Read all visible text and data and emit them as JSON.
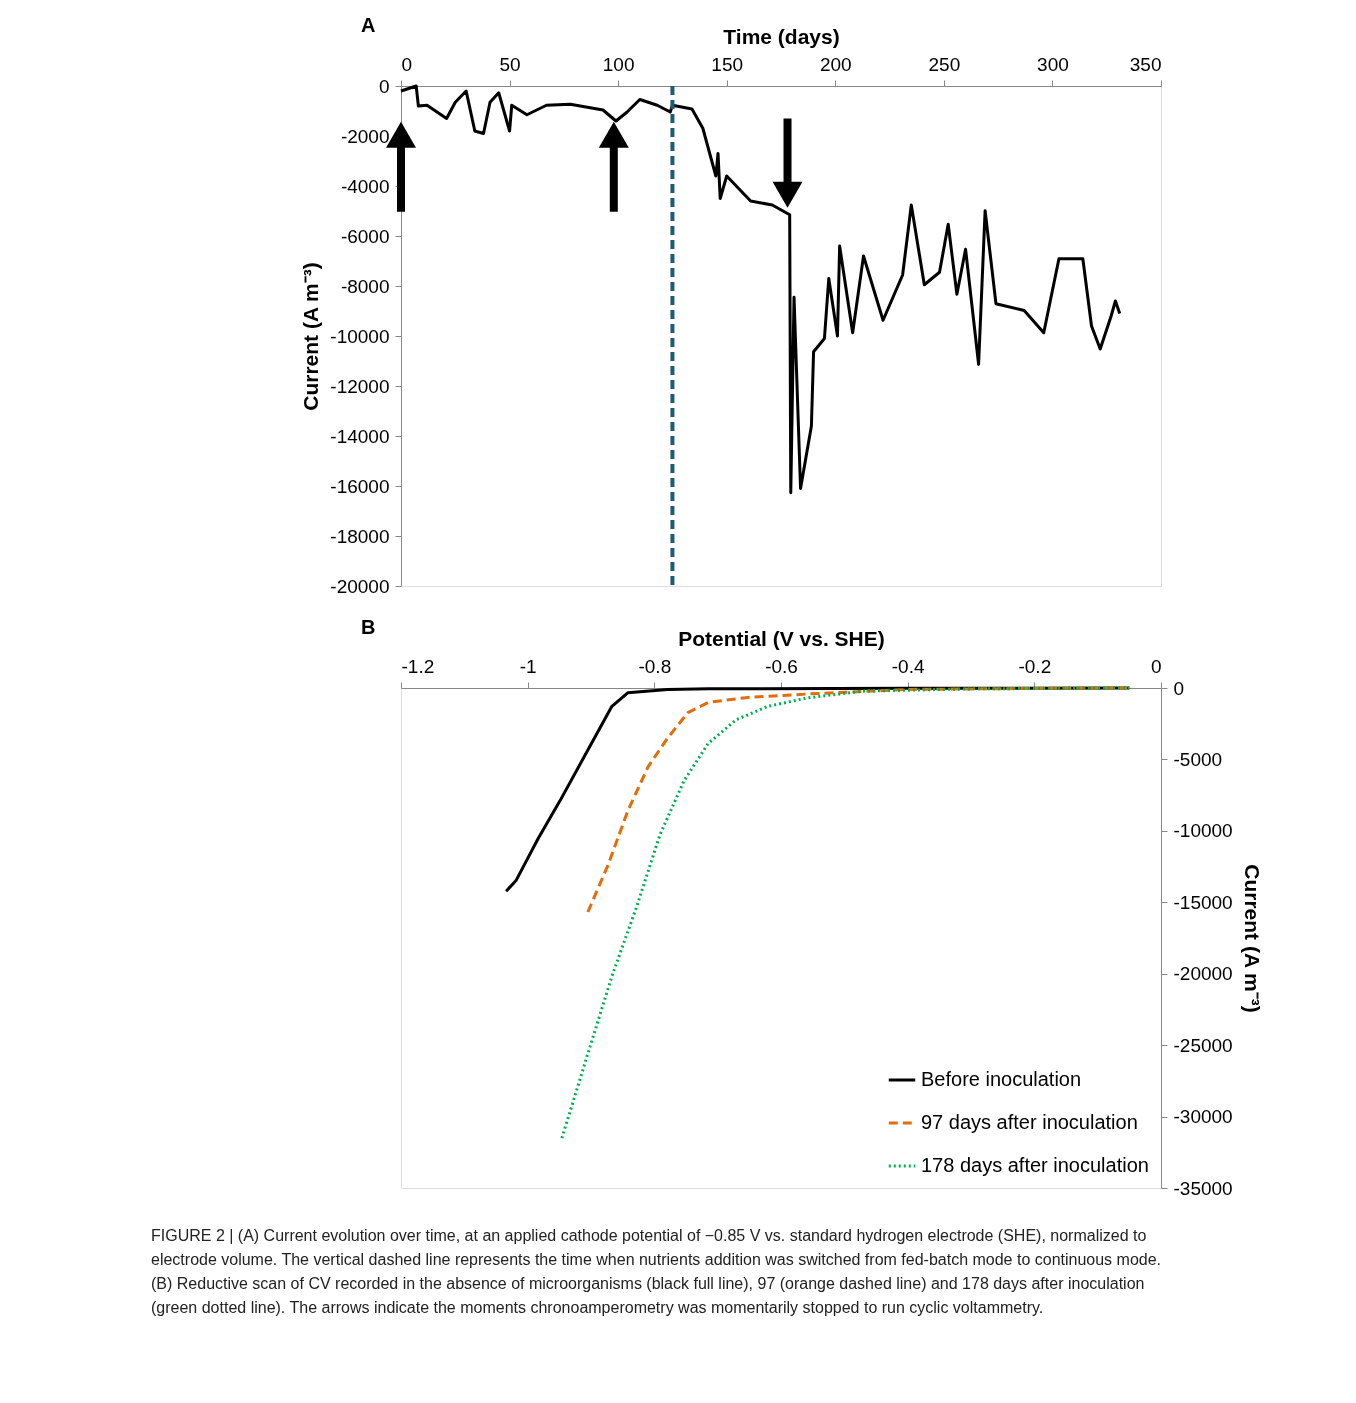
{
  "chart_data": [
    {
      "type": "line",
      "title": "A",
      "xlabel": "Time (days)",
      "ylabel": "Current (A m⁻³)",
      "xlim": [
        0,
        350
      ],
      "xticks": [
        0,
        50,
        100,
        150,
        200,
        250,
        300,
        350
      ],
      "ylim": [
        -20000,
        0
      ],
      "yticks": [
        -20000,
        -18000,
        -16000,
        -14000,
        -12000,
        -10000,
        -8000,
        -6000,
        -4000,
        -2000,
        0
      ],
      "grid": false,
      "legend": false,
      "series": [
        {
          "color": "#000000",
          "x": [
            0,
            7,
            8,
            12,
            21,
            25,
            30,
            34,
            38,
            41,
            45,
            50,
            51,
            58,
            67,
            78,
            93,
            99,
            104,
            110,
            118,
            124,
            125,
            134,
            139,
            145,
            146,
            147,
            150,
            161,
            171,
            179,
            179.5,
            181,
            184,
            189,
            190,
            195,
            197,
            201,
            202,
            208,
            213,
            222,
            231,
            235,
            241,
            248,
            252,
            256,
            260,
            266,
            269,
            274,
            287,
            296,
            303,
            314,
            318,
            322,
            327,
            329,
            331
          ],
          "values": [
            -200,
            0,
            -800,
            -770,
            -1300,
            -650,
            -200,
            -1800,
            -1900,
            -650,
            -270,
            -1800,
            -770,
            -1150,
            -770,
            -730,
            -960,
            -1400,
            -1050,
            -540,
            -770,
            -1040,
            -770,
            -920,
            -1690,
            -3600,
            -2700,
            -4500,
            -3600,
            -4600,
            -4760,
            -5150,
            -16270,
            -8450,
            -16100,
            -13600,
            -10630,
            -10100,
            -7700,
            -10000,
            -6400,
            -9870,
            -6800,
            -9370,
            -7560,
            -4760,
            -7950,
            -7450,
            -5530,
            -8330,
            -6530,
            -11130,
            -4990,
            -8710,
            -8980,
            -9870,
            -6910,
            -6910,
            -9600,
            -10520,
            -9210,
            -8600,
            -9100
          ]
        }
      ],
      "ref_lines": [
        {
          "axis": "x",
          "value": 125,
          "color": "#1f5a78",
          "line_style": "dashed"
        }
      ]
    },
    {
      "type": "line",
      "title": "B",
      "xlabel": "Potential (V vs. SHE)",
      "ylabel": "Current (A m⁻³)",
      "xlim": [
        -1.2,
        0
      ],
      "xticks": [
        -1.2,
        -1,
        -0.8,
        -0.6,
        -0.4,
        -0.2,
        0
      ],
      "ylim": [
        -35000,
        0
      ],
      "yticks": [
        -35000,
        -30000,
        -25000,
        -20000,
        -15000,
        -10000,
        -5000,
        0
      ],
      "grid": false,
      "legend": "bottom right",
      "series": [
        {
          "name": "Before inoculation",
          "color": "#000000",
          "line_style": "solid",
          "x": [
            -1.034,
            -1.018,
            -0.983,
            -0.949,
            -0.911,
            -0.867,
            -0.842,
            -0.779,
            -0.714,
            -0.4,
            -0.05
          ],
          "values": [
            -14230,
            -13450,
            -10500,
            -7900,
            -4830,
            -1280,
            -340,
            -110,
            -60,
            -20,
            0
          ]
        },
        {
          "name": "97 days after inoculation",
          "color": "#e46c0a",
          "line_style": "dashed",
          "x": [
            -0.905,
            -0.873,
            -0.842,
            -0.81,
            -0.779,
            -0.747,
            -0.715,
            -0.652,
            -0.558,
            -0.4,
            -0.2,
            -0.05
          ],
          "values": [
            -15680,
            -12380,
            -8610,
            -5520,
            -3500,
            -1720,
            -1010,
            -660,
            -420,
            -100,
            -30,
            0
          ]
        },
        {
          "name": "178 days after inoculation",
          "color": "#00b050",
          "line_style": "dotted",
          "x": [
            -0.946,
            -0.905,
            -0.867,
            -0.829,
            -0.791,
            -0.753,
            -0.715,
            -0.671,
            -0.621,
            -0.558,
            -0.47,
            -0.3,
            -0.05
          ],
          "values": [
            -31510,
            -25600,
            -20180,
            -15450,
            -10260,
            -6480,
            -3880,
            -2230,
            -1290,
            -690,
            -220,
            -60,
            0
          ]
        }
      ],
      "annotations": [
        "FIGURE 2 | (A) Current evolution over time, at an applied cathode potential of −0.85 V vs. standard hydrogen electrode (SHE), normalized to electrode volume. The vertical dashed line represents the time when nutrients addition was switched from fed-batch mode to continuous mode. (B) Reductive scan of CV recorded in the absence of microorganisms (black full line), 97 (orange dashed line) and 178 days after inoculation (green dotted line). The arrows indicate the moments chronoamperometry was momentarily stopped to run cyclic voltammetry."
      ]
    }
  ]
}
